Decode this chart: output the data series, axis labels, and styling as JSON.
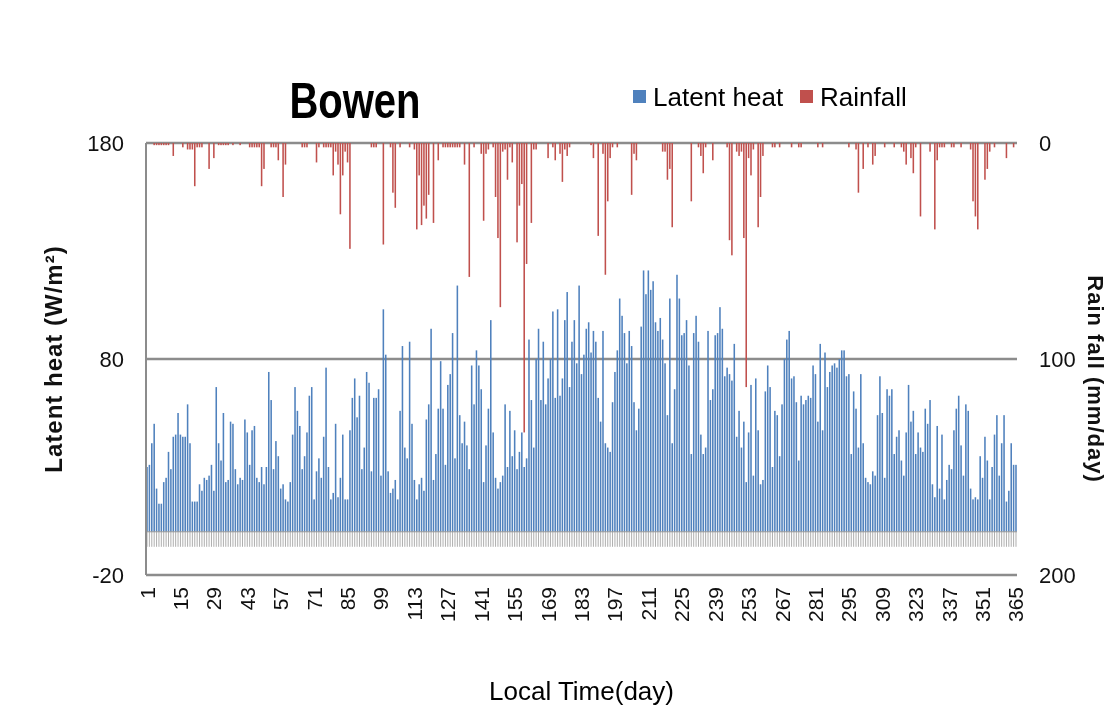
{
  "chart_data": {
    "type": "bar",
    "title": "Bowen",
    "xlabel": "Local Time(day)",
    "ylabel": "Latent heat (W/m²)",
    "y2label": "Rain fall (mm/day)",
    "categories": [
      "1",
      null,
      null,
      null,
      null,
      null,
      null,
      null,
      null,
      null,
      null,
      null,
      null,
      null,
      "15",
      null,
      null,
      null,
      null,
      null,
      null,
      null,
      null,
      null,
      null,
      null,
      null,
      null,
      "29",
      null,
      null,
      null,
      null,
      null,
      null,
      null,
      null,
      null,
      null,
      null,
      null,
      null,
      "43",
      null,
      null,
      null,
      null,
      null,
      null,
      null,
      null,
      null,
      null,
      null,
      null,
      null,
      "57",
      null,
      null,
      null,
      null,
      null,
      null,
      null,
      null,
      null,
      null,
      null,
      null,
      null,
      "71",
      null,
      null,
      null,
      null,
      null,
      null,
      null,
      null,
      null,
      null,
      null,
      null,
      null,
      "85",
      null,
      null,
      null,
      null,
      null,
      null,
      null,
      null,
      null,
      null,
      null,
      null,
      null,
      "99",
      null,
      null,
      null,
      null,
      null,
      null,
      null,
      null,
      null,
      null,
      null,
      null,
      null,
      "113",
      null,
      null,
      null,
      null,
      null,
      null,
      null,
      null,
      null,
      null,
      null,
      null,
      null,
      "127",
      null,
      null,
      null,
      null,
      null,
      null,
      null,
      null,
      null,
      null,
      null,
      null,
      null,
      "141",
      null,
      null,
      null,
      null,
      null,
      null,
      null,
      null,
      null,
      null,
      null,
      null,
      null,
      "155",
      null,
      null,
      null,
      null,
      null,
      null,
      null,
      null,
      null,
      null,
      null,
      null,
      null,
      "169",
      null,
      null,
      null,
      null,
      null,
      null,
      null,
      null,
      null,
      null,
      null,
      null,
      null,
      "183",
      null,
      null,
      null,
      null,
      null,
      null,
      null,
      null,
      null,
      null,
      null,
      null,
      null,
      "197",
      null,
      null,
      null,
      null,
      null,
      null,
      null,
      null,
      null,
      null,
      null,
      null,
      null,
      "211",
      null,
      null,
      null,
      null,
      null,
      null,
      null,
      null,
      null,
      null,
      null,
      null,
      null,
      "225",
      null,
      null,
      null,
      null,
      null,
      null,
      null,
      null,
      null,
      null,
      null,
      null,
      null,
      "239",
      null,
      null,
      null,
      null,
      null,
      null,
      null,
      null,
      null,
      null,
      null,
      null,
      null,
      "253",
      null,
      null,
      null,
      null,
      null,
      null,
      null,
      null,
      null,
      null,
      null,
      null,
      null,
      "267",
      null,
      null,
      null,
      null,
      null,
      null,
      null,
      null,
      null,
      null,
      null,
      null,
      null,
      "281",
      null,
      null,
      null,
      null,
      null,
      null,
      null,
      null,
      null,
      null,
      null,
      null,
      null,
      "295",
      null,
      null,
      null,
      null,
      null,
      null,
      null,
      null,
      null,
      null,
      null,
      null,
      null,
      "309",
      null,
      null,
      null,
      null,
      null,
      null,
      null,
      null,
      null,
      null,
      null,
      null,
      null,
      "323",
      null,
      null,
      null,
      null,
      null,
      null,
      null,
      null,
      null,
      null,
      null,
      null,
      null,
      "337",
      null,
      null,
      null,
      null,
      null,
      null,
      null,
      null,
      null,
      null,
      null,
      null,
      null,
      "351",
      null,
      null,
      null,
      null,
      null,
      null,
      null,
      null,
      null,
      null,
      null,
      null,
      null,
      "365"
    ],
    "series": [
      {
        "name": "Latent heat",
        "color": "#4f81bd",
        "values": [
          30,
          31,
          41,
          50,
          20,
          13,
          13,
          23,
          25,
          37,
          29,
          44,
          45,
          55,
          45,
          44,
          44,
          59,
          41,
          14,
          14,
          14,
          22,
          19,
          25,
          24,
          26,
          31,
          19,
          67,
          41,
          33,
          55,
          23,
          24,
          51,
          50,
          29,
          22,
          25,
          24,
          52,
          46,
          31,
          47,
          49,
          25,
          23,
          30,
          22,
          30,
          74,
          61,
          29,
          42,
          35,
          20,
          22,
          15,
          14,
          23,
          45,
          67,
          56,
          49,
          29,
          35,
          46,
          63,
          67,
          15,
          28,
          34,
          25,
          44,
          76,
          30,
          15,
          18,
          50,
          16,
          25,
          45,
          15,
          15,
          47,
          62,
          71,
          53,
          63,
          29,
          39,
          74,
          69,
          28,
          62,
          62,
          66,
          26,
          103,
          82,
          28,
          18,
          20,
          24,
          15,
          56,
          86,
          39,
          34,
          88,
          50,
          24,
          15,
          22,
          25,
          19,
          52,
          59,
          94,
          24,
          36,
          57,
          79,
          57,
          31,
          68,
          73,
          92,
          34,
          114,
          54,
          41,
          51,
          40,
          29,
          77,
          59,
          84,
          77,
          66,
          23,
          40,
          57,
          98,
          46,
          25,
          20,
          23,
          26,
          59,
          30,
          56,
          35,
          47,
          29,
          37,
          46,
          30,
          34,
          89,
          61,
          39,
          80,
          94,
          61,
          88,
          59,
          71,
          80,
          102,
          62,
          103,
          63,
          71,
          98,
          111,
          67,
          88,
          98,
          78,
          114,
          73,
          82,
          94,
          97,
          83,
          93,
          88,
          62,
          51,
          93,
          41,
          39,
          37,
          60,
          74,
          84,
          108,
          100,
          92,
          78,
          93,
          86,
          60,
          47,
          57,
          95,
          121,
          110,
          121,
          112,
          116,
          97,
          93,
          99,
          89,
          78,
          54,
          108,
          41,
          66,
          119,
          108,
          91,
          92,
          98,
          77,
          36,
          92,
          100,
          88,
          45,
          36,
          39,
          93,
          61,
          66,
          91,
          92,
          104,
          94,
          72,
          76,
          73,
          70,
          87,
          44,
          56,
          39,
          51,
          23,
          46,
          68,
          26,
          71,
          47,
          22,
          24,
          65,
          77,
          67,
          30,
          56,
          54,
          35,
          59,
          80,
          89,
          93,
          71,
          72,
          60,
          33,
          63,
          59,
          61,
          63,
          62,
          77,
          73,
          51,
          87,
          47,
          83,
          67,
          74,
          77,
          78,
          76,
          80,
          84,
          84,
          72,
          73,
          36,
          65,
          57,
          39,
          73,
          41,
          25,
          23,
          22,
          28,
          26,
          54,
          72,
          55,
          25,
          66,
          63,
          66,
          36,
          44,
          47,
          33,
          26,
          46,
          68,
          51,
          56,
          36,
          46,
          39,
          37,
          57,
          50,
          61,
          22,
          16,
          49,
          20,
          45,
          15,
          24,
          31,
          29,
          47,
          57,
          63,
          40,
          26,
          59,
          56,
          20,
          15,
          16,
          15,
          35,
          25,
          44,
          33,
          15,
          30,
          45,
          54,
          26,
          41,
          54,
          14,
          19,
          41,
          31,
          31
        ]
      },
      {
        "name": "Rainfall",
        "color": "#c0504d",
        "axis": "y2",
        "values": [
          0,
          0,
          0,
          1,
          1,
          1,
          1,
          1,
          1,
          1,
          0,
          6,
          0,
          0,
          0,
          2,
          0,
          3,
          3,
          3,
          20,
          2,
          2,
          2,
          0,
          0,
          12,
          0,
          7,
          0,
          1,
          1,
          1,
          1,
          1,
          0,
          1,
          0,
          0,
          1,
          0,
          0,
          0,
          2,
          2,
          2,
          2,
          2,
          20,
          12,
          0,
          0,
          2,
          2,
          2,
          8,
          0,
          25,
          10,
          0,
          0,
          0,
          0,
          0,
          0,
          2,
          2,
          2,
          0,
          0,
          0,
          9,
          2,
          0,
          2,
          2,
          2,
          2,
          15,
          4,
          10,
          33,
          15,
          4,
          9,
          49,
          0,
          0,
          0,
          0,
          0,
          0,
          0,
          0,
          2,
          2,
          2,
          0,
          0,
          47,
          0,
          0,
          2,
          23,
          30,
          0,
          2,
          0,
          0,
          0,
          2,
          0,
          3,
          40,
          15,
          38,
          29,
          35,
          24,
          0,
          37,
          0,
          8,
          0,
          2,
          2,
          2,
          2,
          2,
          2,
          2,
          2,
          0,
          10,
          0,
          62,
          0,
          2,
          0,
          0,
          5,
          36,
          5,
          3,
          0,
          2,
          25,
          44,
          76,
          4,
          3,
          17,
          2,
          9,
          0,
          46,
          29,
          19,
          134,
          56,
          0,
          37,
          3,
          3,
          0,
          0,
          0,
          0,
          7,
          0,
          2,
          8,
          0,
          5,
          18,
          3,
          6,
          2,
          0,
          0,
          0,
          0,
          0,
          0,
          0,
          0,
          1,
          7,
          0,
          43,
          0,
          5,
          61,
          27,
          7,
          2,
          0,
          2,
          0,
          0,
          0,
          0,
          0,
          24,
          5,
          8,
          0,
          0,
          0,
          0,
          0,
          0,
          0,
          0,
          0,
          0,
          4,
          4,
          17,
          12,
          39,
          0,
          0,
          0,
          0,
          0,
          0,
          0,
          27,
          0,
          0,
          2,
          6,
          14,
          2,
          0,
          0,
          8,
          0,
          0,
          0,
          0,
          0,
          2,
          45,
          52,
          0,
          4,
          6,
          4,
          44,
          113,
          7,
          15,
          3,
          0,
          39,
          25,
          6,
          0,
          0,
          0,
          2,
          2,
          0,
          2,
          0,
          0,
          0,
          0,
          2,
          0,
          0,
          2,
          2,
          0,
          0,
          0,
          0,
          0,
          0,
          2,
          0,
          2,
          0,
          0,
          0,
          0,
          0,
          0,
          0,
          0,
          0,
          0,
          2,
          0,
          0,
          3,
          23,
          0,
          12,
          0,
          2,
          0,
          10,
          6,
          0,
          0,
          0,
          2,
          0,
          0,
          0,
          2,
          0,
          0,
          2,
          4,
          10,
          0,
          7,
          14,
          2,
          0,
          34,
          0,
          0,
          0,
          4,
          0,
          40,
          8,
          2,
          2,
          2,
          0,
          0,
          2,
          2,
          0,
          0,
          2,
          0,
          0,
          0,
          3,
          27,
          34,
          40,
          0,
          0,
          17,
          12,
          4,
          0,
          2,
          0,
          0,
          0,
          0,
          7,
          0,
          0,
          2,
          0
        ]
      }
    ],
    "ylim": [
      -20,
      180
    ],
    "yticks": [
      -20,
      80,
      180
    ],
    "y2lim": [
      200,
      0
    ],
    "y2ticks": [
      0,
      100,
      200
    ],
    "grid": "y",
    "legend": "top"
  }
}
